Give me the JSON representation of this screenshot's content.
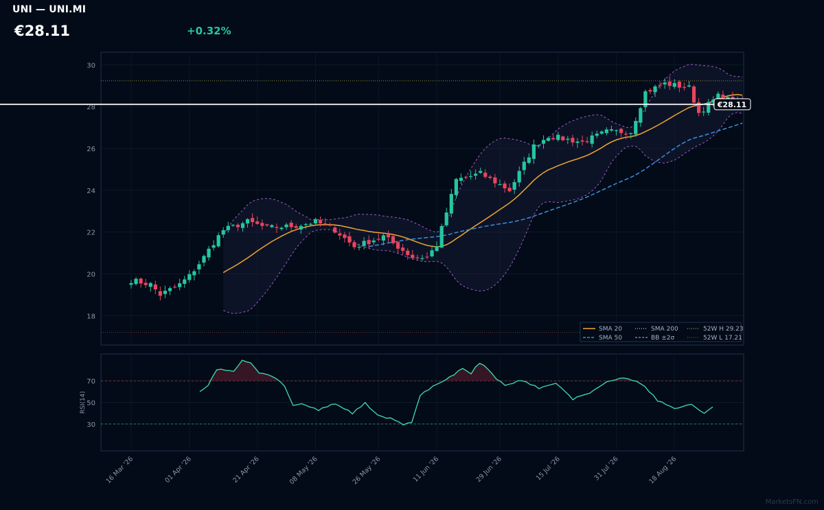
{
  "header": {
    "title": "UNI — UNI.MI",
    "price": "€28.11",
    "change": "+0.32%"
  },
  "watermark": "MarketsFN.com",
  "colors": {
    "background": "#020b17",
    "up": "#26c6a0",
    "down": "#e8455f",
    "sma20": "#f0a830",
    "sma50": "#3b8fe0",
    "sma200": "#7fb5a8",
    "bollinger": "#a05cc8",
    "week52": "#8a8a3a",
    "rsi": "#3fd1a8",
    "frame": "#22324d"
  },
  "chart_data": {
    "type": "candlestick",
    "price_axis": {
      "ylim": [
        16.6,
        30.6
      ],
      "ticks": [
        18,
        20,
        22,
        24,
        26,
        28,
        30
      ]
    },
    "rsi_axis": {
      "label": "RSI(14)",
      "ticks": [
        30,
        50,
        70
      ],
      "ylim": [
        5,
        95
      ],
      "overbought": 70,
      "oversold": 30
    },
    "x_axis": {
      "ticks": [
        "16 Mar '26",
        "01 Apr '26",
        "21 Apr '26",
        "08 May '26",
        "26 May '26",
        "11 Jun '26",
        "29 Jun '26",
        "15 Jul '26",
        "31 Jul '26",
        "18 Aug '26"
      ],
      "tick_index": [
        0,
        12,
        26,
        38,
        51,
        63,
        76,
        88,
        100,
        112
      ]
    },
    "last_price_label": "€28.11",
    "last_price": 28.11,
    "week52_high": 29.23,
    "week52_low": 17.21,
    "legend": [
      {
        "key": "sma20",
        "label": "SMA 20",
        "style": "solid"
      },
      {
        "key": "sma200",
        "label": "SMA 200",
        "style": "dotted"
      },
      {
        "key": "wh",
        "label": "52W H 29.23",
        "style": "dotted"
      },
      {
        "key": "sma50",
        "label": "SMA 50",
        "style": "dashed"
      },
      {
        "key": "bb",
        "label": "BB ±2σ",
        "style": "dashed"
      },
      {
        "key": "wl",
        "label": "52W L 17.21",
        "style": "dotted"
      }
    ],
    "close_anchors": [
      [
        0,
        19.7
      ],
      [
        4,
        19.5
      ],
      [
        6,
        19.0
      ],
      [
        10,
        19.5
      ],
      [
        12,
        19.9
      ],
      [
        15,
        20.8
      ],
      [
        17,
        21.5
      ],
      [
        19,
        22.1
      ],
      [
        24,
        22.5
      ],
      [
        28,
        22.2
      ],
      [
        34,
        22.3
      ],
      [
        38,
        22.5
      ],
      [
        42,
        22.1
      ],
      [
        46,
        21.3
      ],
      [
        52,
        21.8
      ],
      [
        58,
        20.8
      ],
      [
        61,
        20.8
      ],
      [
        63,
        21.4
      ],
      [
        67,
        24.5
      ],
      [
        72,
        24.8
      ],
      [
        78,
        24.0
      ],
      [
        83,
        26.1
      ],
      [
        86,
        26.6
      ],
      [
        93,
        26.3
      ],
      [
        98,
        26.8
      ],
      [
        103,
        26.8
      ],
      [
        106,
        28.7
      ],
      [
        110,
        29.1
      ],
      [
        115,
        28.9
      ],
      [
        117,
        27.7
      ],
      [
        121,
        28.5
      ],
      [
        126,
        28.11
      ]
    ],
    "rsi_anchors": [
      [
        19,
        60
      ],
      [
        21,
        66
      ],
      [
        23,
        81
      ],
      [
        27,
        79
      ],
      [
        29,
        89
      ],
      [
        31,
        87
      ],
      [
        33,
        77
      ],
      [
        35,
        76
      ],
      [
        37,
        72
      ],
      [
        39,
        65
      ],
      [
        41,
        47
      ],
      [
        43,
        49
      ],
      [
        47,
        43
      ],
      [
        51,
        49
      ],
      [
        55,
        40
      ],
      [
        58,
        50
      ],
      [
        61,
        38
      ],
      [
        65,
        34
      ],
      [
        67,
        29
      ],
      [
        69,
        32
      ],
      [
        71,
        57
      ],
      [
        75,
        67
      ],
      [
        79,
        76
      ],
      [
        81,
        82
      ],
      [
        83,
        77
      ],
      [
        85,
        87
      ],
      [
        87,
        81
      ],
      [
        89,
        72
      ],
      [
        91,
        66
      ],
      [
        95,
        71
      ],
      [
        99,
        63
      ],
      [
        103,
        68
      ],
      [
        107,
        53
      ],
      [
        111,
        59
      ],
      [
        115,
        69
      ],
      [
        119,
        73
      ],
      [
        123,
        68
      ],
      [
        127,
        52
      ],
      [
        131,
        44
      ],
      [
        135,
        48
      ],
      [
        138,
        40
      ],
      [
        140,
        46
      ]
    ],
    "num_candles": 127,
    "rsi_x_offset": 0
  }
}
